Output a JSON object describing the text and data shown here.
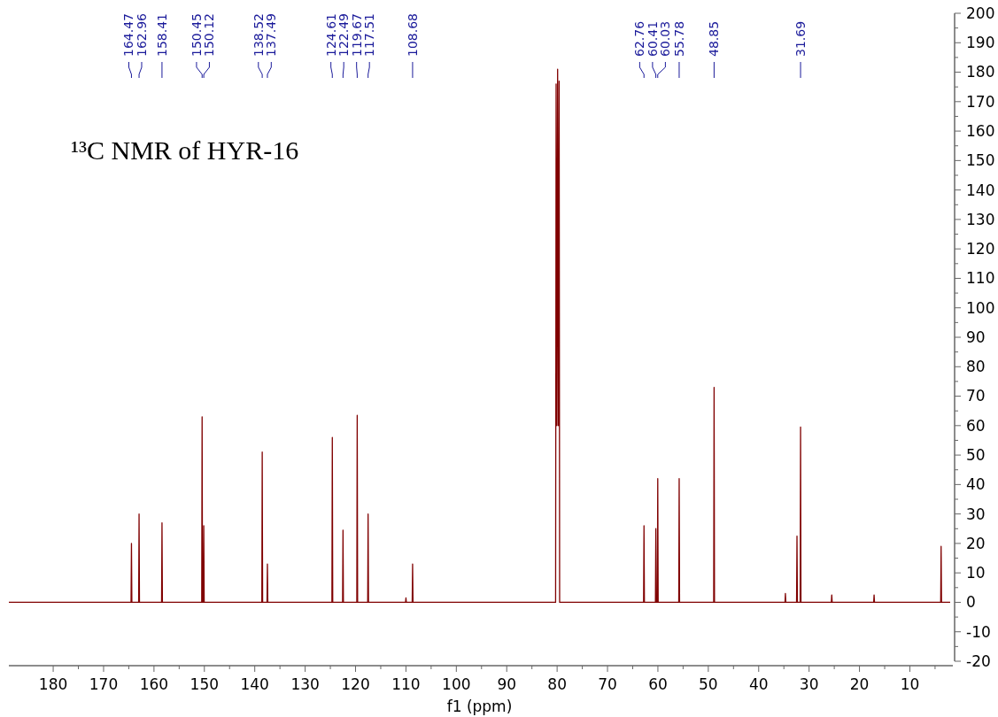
{
  "chart_data": {
    "type": "line",
    "title": "¹³C NMR of HYR-16",
    "xlabel": "f1 (ppm)",
    "xlim": [
      188.8,
      2
    ],
    "ylim": [
      -20,
      200
    ],
    "xticks": [
      180,
      {
        "value": 175,
        "label": null
      },
      170,
      {
        "value": 165,
        "label": null
      },
      160,
      {
        "value": 155,
        "label": null
      },
      150,
      {
        "value": 145,
        "label": null
      },
      140,
      {
        "value": 135,
        "label": null
      },
      130,
      {
        "value": 125,
        "label": null
      },
      120,
      {
        "value": 115,
        "label": null
      },
      110,
      {
        "value": 105,
        "label": null
      },
      100,
      {
        "value": 95,
        "label": null
      },
      90,
      {
        "value": 85,
        "label": null
      },
      80,
      {
        "value": 75,
        "label": null
      },
      70,
      {
        "value": 65,
        "label": null
      },
      60,
      {
        "value": 55,
        "label": null
      },
      50,
      {
        "value": 45,
        "label": null
      },
      40,
      {
        "value": 35,
        "label": null
      },
      30,
      {
        "value": 25,
        "label": null
      },
      20,
      {
        "value": 15,
        "label": null
      },
      10,
      {
        "value": 5,
        "label": null
      }
    ],
    "yticks": [
      -20,
      {
        "value": -15,
        "label": null
      },
      -10,
      {
        "value": -5,
        "label": null
      },
      0,
      {
        "value": 5,
        "label": null
      },
      10,
      {
        "value": 15,
        "label": null
      },
      20,
      {
        "value": 25,
        "label": null
      },
      30,
      {
        "value": 35,
        "label": null
      },
      40,
      {
        "value": 45,
        "label": null
      },
      50,
      {
        "value": 55,
        "label": null
      },
      60,
      {
        "value": 65,
        "label": null
      },
      70,
      {
        "value": 75,
        "label": null
      },
      80,
      {
        "value": 85,
        "label": null
      },
      90,
      {
        "value": 95,
        "label": null
      },
      100,
      {
        "value": 105,
        "label": null
      },
      110,
      {
        "value": 115,
        "label": null
      },
      120,
      {
        "value": 125,
        "label": null
      },
      130,
      {
        "value": 135,
        "label": null
      },
      140,
      {
        "value": 145,
        "label": null
      },
      150,
      {
        "value": 155,
        "label": null
      },
      160,
      {
        "value": 165,
        "label": null
      },
      170,
      {
        "value": 175,
        "label": null
      },
      180,
      {
        "value": 185,
        "label": null
      },
      190,
      {
        "value": 195,
        "label": null
      },
      200
    ],
    "grid": false,
    "series": [
      {
        "color": "#800000",
        "x": [
          188.8,
          164.55,
          164.47,
          164.39,
          163.04,
          162.96,
          162.88,
          158.49,
          158.41,
          158.33,
          150.53,
          150.45,
          150.37,
          150.2,
          150.12,
          150.04,
          138.6,
          138.52,
          138.44,
          137.57,
          137.49,
          137.41,
          124.69,
          124.61,
          124.53,
          122.57,
          122.49,
          122.41,
          119.75,
          119.67,
          119.59,
          117.59,
          117.51,
          117.43,
          110.08,
          110,
          109.92,
          108.76,
          108.68,
          108.6,
          80.3,
          80.2,
          80.05,
          79.9,
          79.75,
          79.6,
          79.5,
          62.84,
          62.76,
          62.68,
          60.49,
          60.41,
          60.33,
          60.11,
          60.03,
          59.95,
          55.86,
          55.78,
          55.7,
          48.93,
          48.85,
          48.77,
          34.78,
          34.7,
          34.62,
          32.48,
          32.4,
          32.32,
          31.77,
          31.69,
          31.61,
          25.58,
          25.5,
          25.42,
          17.18,
          17.1,
          17.02,
          3.88,
          3.8,
          3.72,
          2
        ],
        "values": [
          0,
          0,
          20,
          0,
          0,
          30,
          0,
          0,
          27,
          0,
          0,
          63,
          0,
          0,
          26,
          0,
          0,
          51,
          0,
          0,
          13,
          0,
          0,
          56,
          0,
          0,
          24.5,
          0,
          0,
          63.5,
          0,
          0,
          30,
          0,
          0,
          1.5,
          0,
          0,
          13,
          0,
          0,
          176,
          60,
          181,
          60,
          177,
          0,
          0,
          26,
          0,
          0,
          25,
          0,
          0,
          42,
          0,
          0,
          42,
          0,
          0,
          73,
          0,
          0,
          3,
          0,
          0,
          22.5,
          0,
          0,
          59.5,
          0,
          0,
          2.5,
          0,
          0,
          2.5,
          0,
          0,
          19,
          0,
          0
        ]
      }
    ],
    "annotations": [
      {
        "text": "164.47",
        "x": 164.47
      },
      {
        "text": "162.96",
        "x": 162.96
      },
      {
        "text": "158.41",
        "x": 158.41
      },
      {
        "text": "150.45",
        "x": 150.45
      },
      {
        "text": "150.12",
        "x": 150.12
      },
      {
        "text": "138.52",
        "x": 138.52
      },
      {
        "text": "137.49",
        "x": 137.49
      },
      {
        "text": "124.61",
        "x": 124.61
      },
      {
        "text": "122.49",
        "x": 122.49
      },
      {
        "text": "119.67",
        "x": 119.67
      },
      {
        "text": "117.51",
        "x": 117.51
      },
      {
        "text": "108.68",
        "x": 108.68
      },
      {
        "text": "62.76",
        "x": 62.76
      },
      {
        "text": "60.41",
        "x": 60.41
      },
      {
        "text": "60.03",
        "x": 60.03
      },
      {
        "text": "55.78",
        "x": 55.78
      },
      {
        "text": "48.85",
        "x": 48.85
      },
      {
        "text": "31.69",
        "x": 31.69
      }
    ]
  }
}
